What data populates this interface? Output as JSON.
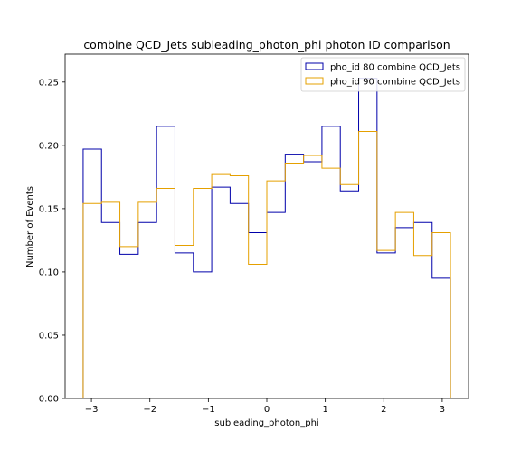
{
  "chart_data": {
    "type": "histogram-step",
    "title": "combine QCD_Jets subleading_photon_phi photon ID comparison",
    "xlabel": "subleading_photon_phi",
    "ylabel": "Number of Events",
    "xlim": [
      -3.45,
      3.45
    ],
    "ylim": [
      0.0,
      0.272
    ],
    "xticks": [
      -3,
      -2,
      -1,
      0,
      1,
      2,
      3
    ],
    "xtick_labels": [
      "−3",
      "−2",
      "−1",
      "0",
      "1",
      "2",
      "3"
    ],
    "yticks": [
      0.0,
      0.05,
      0.1,
      0.15,
      0.2,
      0.25
    ],
    "ytick_labels": [
      "0.00",
      "0.05",
      "0.10",
      "0.15",
      "0.20",
      "0.25"
    ],
    "grid": false,
    "legend_placement": "top-right",
    "bin_edges": [
      -3.1416,
      -2.8274,
      -2.5133,
      -2.1991,
      -1.885,
      -1.5708,
      -1.2566,
      -0.9425,
      -0.6283,
      -0.3142,
      0.0,
      0.3142,
      0.6283,
      0.9425,
      1.2566,
      1.5708,
      1.885,
      2.1991,
      2.5133,
      2.8274,
      3.1416
    ],
    "series": [
      {
        "name": "pho_id 80 combine QCD_Jets",
        "color": "#0000aa",
        "values": [
          0.197,
          0.139,
          0.114,
          0.139,
          0.215,
          0.115,
          0.1,
          0.167,
          0.154,
          0.131,
          0.147,
          0.193,
          0.187,
          0.215,
          0.164,
          0.253,
          0.115,
          0.135,
          0.139,
          0.095
        ]
      },
      {
        "name": "pho_id 90 combine QCD_Jets",
        "color": "#e5a000",
        "values": [
          0.154,
          0.155,
          0.12,
          0.155,
          0.166,
          0.121,
          0.166,
          0.177,
          0.176,
          0.106,
          0.172,
          0.186,
          0.192,
          0.182,
          0.169,
          0.211,
          0.117,
          0.147,
          0.113,
          0.131
        ]
      }
    ]
  }
}
